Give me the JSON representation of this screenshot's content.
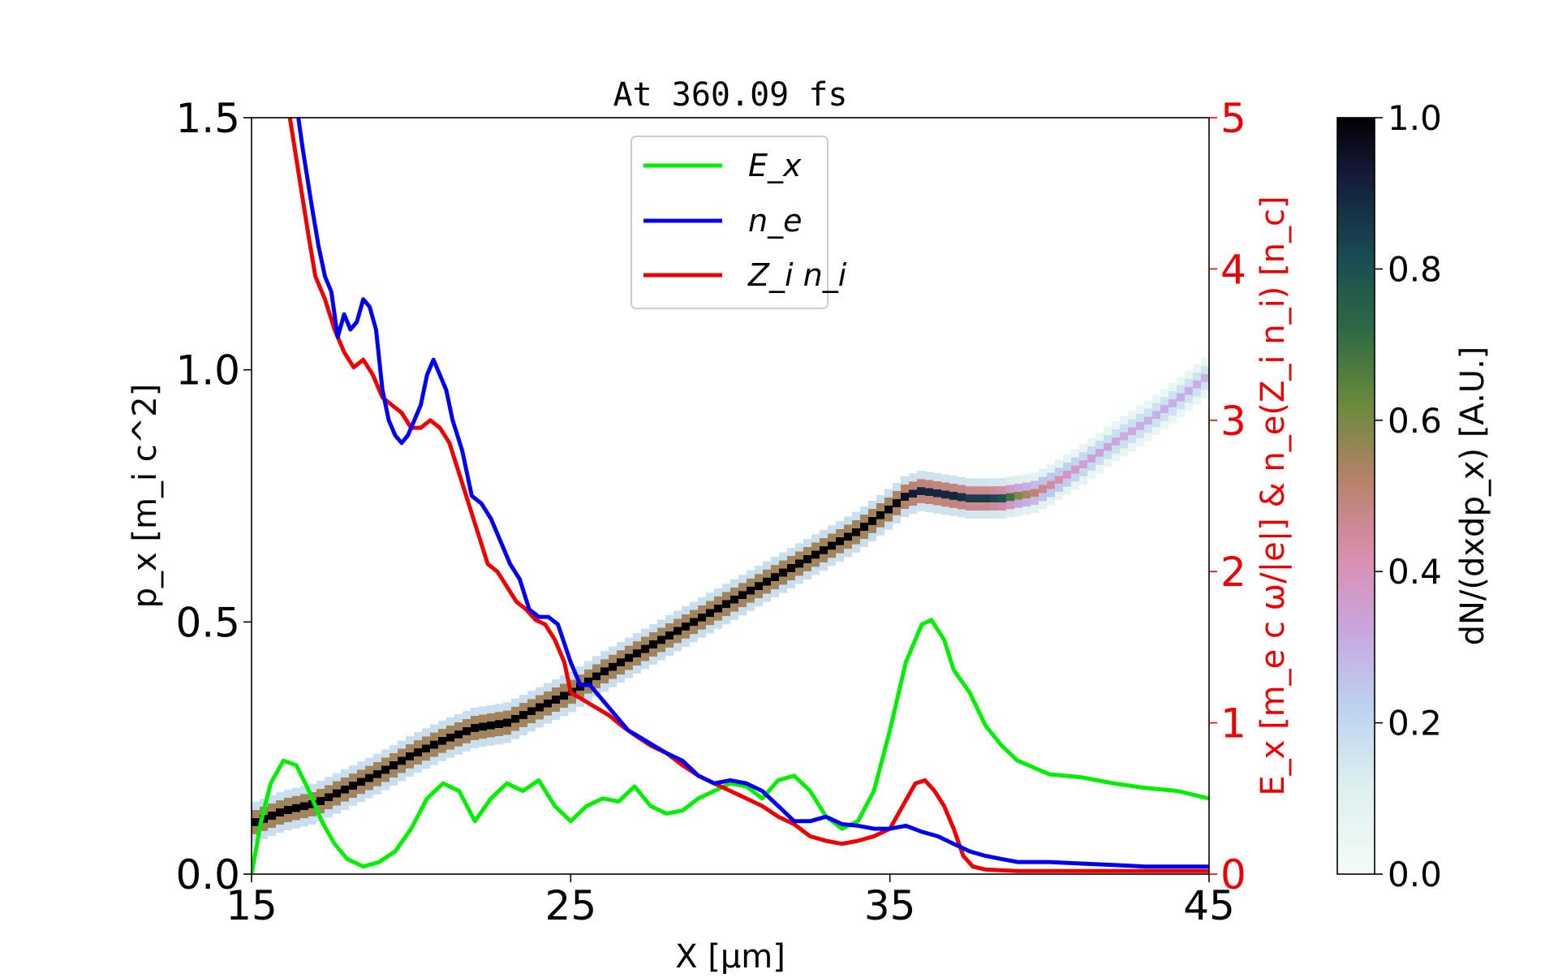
{
  "chart_data": {
    "type": "line",
    "title": "At 360.09 fs",
    "xlabel": "X [μm]",
    "ylabel_left": "p_x [m_i c^2]",
    "ylabel_right": "E_x [m_e c ω/|e|] & n_e(Z_i n_i) [n_c]",
    "xlim": [
      15,
      45
    ],
    "ylim_left": [
      0,
      1.5
    ],
    "ylim_right": [
      0,
      5
    ],
    "x_ticks": [
      "15",
      "25",
      "35",
      "45"
    ],
    "y_ticks_left": [
      "0.0",
      "0.5",
      "1.0",
      "1.5"
    ],
    "y_ticks_right": [
      "0",
      "1",
      "2",
      "3",
      "4",
      "5"
    ],
    "colorbar": {
      "label": "dN/(dxdp_x) [A.U.]",
      "ticks": [
        "0.0",
        "0.2",
        "0.4",
        "0.6",
        "0.8",
        "1.0"
      ],
      "range": [
        0,
        1
      ]
    },
    "legend": {
      "placement": "upper-center",
      "entries": [
        "E_x",
        "n_e",
        "Z_i n_i"
      ]
    },
    "colors": {
      "Ex": "#00ee00",
      "ne": "#0000ee",
      "Zini": "#ee0000",
      "right_axis": "#ee0000"
    },
    "series": [
      {
        "name": "E_x",
        "axis": "right",
        "x": [
          15.0,
          15.3,
          15.6,
          16.0,
          16.4,
          16.8,
          17.2,
          17.6,
          18.0,
          18.5,
          19.0,
          19.5,
          20.0,
          20.5,
          21.0,
          21.5,
          22.0,
          22.5,
          23.0,
          23.5,
          24.0,
          24.5,
          25.0,
          25.5,
          26.0,
          26.5,
          27.0,
          27.5,
          28.0,
          28.5,
          29.0,
          29.5,
          30.0,
          30.5,
          31.0,
          31.5,
          32.0,
          32.5,
          33.0,
          33.5,
          34.0,
          34.5,
          35.0,
          35.5,
          36.0,
          36.3,
          36.7,
          37.0,
          37.5,
          38.0,
          38.5,
          39.0,
          40.0,
          41.0,
          42.0,
          43.0,
          44.0,
          45.0
        ],
        "y": [
          0.0,
          0.35,
          0.6,
          0.75,
          0.72,
          0.55,
          0.35,
          0.2,
          0.1,
          0.05,
          0.08,
          0.15,
          0.3,
          0.5,
          0.6,
          0.55,
          0.35,
          0.5,
          0.6,
          0.55,
          0.62,
          0.45,
          0.35,
          0.45,
          0.5,
          0.48,
          0.58,
          0.45,
          0.4,
          0.42,
          0.5,
          0.55,
          0.6,
          0.58,
          0.5,
          0.62,
          0.65,
          0.55,
          0.38,
          0.3,
          0.35,
          0.55,
          0.95,
          1.4,
          1.65,
          1.68,
          1.55,
          1.35,
          1.2,
          0.98,
          0.85,
          0.75,
          0.66,
          0.64,
          0.6,
          0.57,
          0.55,
          0.5
        ]
      },
      {
        "name": "n_e",
        "axis": "right",
        "x": [
          16.4,
          16.6,
          16.9,
          17.1,
          17.3,
          17.5,
          17.7,
          17.9,
          18.1,
          18.3,
          18.5,
          18.7,
          18.9,
          19.1,
          19.3,
          19.5,
          19.7,
          19.9,
          20.1,
          20.3,
          20.5,
          20.7,
          20.9,
          21.1,
          21.3,
          21.6,
          21.9,
          22.2,
          22.5,
          22.8,
          23.1,
          23.4,
          23.7,
          24.0,
          24.3,
          24.6,
          25.0,
          25.3,
          25.6,
          26.0,
          26.4,
          26.8,
          27.2,
          27.6,
          28.0,
          28.5,
          29.0,
          29.5,
          30.0,
          30.5,
          31.0,
          31.5,
          32.0,
          32.5,
          33.0,
          33.5,
          34.0,
          34.5,
          35.0,
          35.5,
          36.0,
          36.5,
          37.0,
          37.5,
          38.0,
          38.5,
          39.0,
          40.0,
          41.0,
          42.0,
          43.0,
          44.0,
          45.0
        ],
        "y": [
          5.1,
          4.8,
          4.4,
          4.15,
          3.95,
          3.85,
          3.55,
          3.7,
          3.6,
          3.65,
          3.8,
          3.75,
          3.6,
          3.2,
          3.0,
          2.9,
          2.85,
          2.9,
          3.0,
          3.1,
          3.3,
          3.4,
          3.3,
          3.2,
          3.0,
          2.8,
          2.5,
          2.45,
          2.35,
          2.2,
          2.05,
          1.95,
          1.75,
          1.7,
          1.7,
          1.65,
          1.4,
          1.25,
          1.25,
          1.15,
          1.05,
          0.95,
          0.9,
          0.85,
          0.8,
          0.75,
          0.65,
          0.6,
          0.62,
          0.6,
          0.55,
          0.45,
          0.35,
          0.35,
          0.38,
          0.33,
          0.32,
          0.3,
          0.3,
          0.32,
          0.28,
          0.25,
          0.2,
          0.15,
          0.12,
          0.1,
          0.08,
          0.08,
          0.07,
          0.06,
          0.05,
          0.05,
          0.05
        ]
      },
      {
        "name": "Z_i n_i",
        "axis": "right",
        "x": [
          16.2,
          16.5,
          16.8,
          17.0,
          17.3,
          17.6,
          17.9,
          18.2,
          18.5,
          18.8,
          19.1,
          19.4,
          19.7,
          20.0,
          20.3,
          20.6,
          20.9,
          21.2,
          21.5,
          21.8,
          22.1,
          22.4,
          22.7,
          23.0,
          23.3,
          23.6,
          23.9,
          24.2,
          24.5,
          24.8,
          25.0,
          25.4,
          25.8,
          26.2,
          26.6,
          27.0,
          27.5,
          28.0,
          28.5,
          29.0,
          29.5,
          30.0,
          30.5,
          31.0,
          31.5,
          32.0,
          32.5,
          33.0,
          33.5,
          34.0,
          34.5,
          35.0,
          35.4,
          35.8,
          36.1,
          36.4,
          36.7,
          37.0,
          37.3,
          37.6,
          38.0,
          39.0,
          40.0,
          41.0,
          42.0,
          43.0,
          44.0,
          45.0
        ],
        "y": [
          5.0,
          4.6,
          4.2,
          3.95,
          3.8,
          3.6,
          3.45,
          3.35,
          3.4,
          3.3,
          3.15,
          3.1,
          3.05,
          2.95,
          2.95,
          3.0,
          2.95,
          2.85,
          2.65,
          2.45,
          2.25,
          2.05,
          2.0,
          1.9,
          1.8,
          1.75,
          1.68,
          1.65,
          1.55,
          1.4,
          1.2,
          1.15,
          1.1,
          1.05,
          0.98,
          0.92,
          0.85,
          0.8,
          0.72,
          0.65,
          0.6,
          0.55,
          0.5,
          0.45,
          0.38,
          0.33,
          0.25,
          0.22,
          0.2,
          0.22,
          0.25,
          0.3,
          0.45,
          0.6,
          0.62,
          0.55,
          0.45,
          0.3,
          0.12,
          0.05,
          0.03,
          0.02,
          0.02,
          0.02,
          0.02,
          0.02,
          0.02,
          0.02
        ]
      },
      {
        "name": "",
        "kind": "phase-space-density",
        "axis": "left",
        "x": [
          15.0,
          16.0,
          17.0,
          18.0,
          19.0,
          20.0,
          21.0,
          22.0,
          23.0,
          24.0,
          25.0,
          26.0,
          27.0,
          28.0,
          29.0,
          30.0,
          31.0,
          32.0,
          33.0,
          34.0,
          35.0,
          35.5,
          36.0,
          36.5,
          37.0,
          37.5,
          38.0,
          38.5,
          39.0,
          39.5,
          40.0,
          41.0,
          42.0,
          43.0,
          44.0,
          45.0
        ],
        "y": [
          0.1,
          0.125,
          0.14,
          0.17,
          0.2,
          0.235,
          0.265,
          0.29,
          0.3,
          0.33,
          0.36,
          0.4,
          0.435,
          0.47,
          0.505,
          0.54,
          0.575,
          0.61,
          0.645,
          0.68,
          0.725,
          0.75,
          0.76,
          0.755,
          0.75,
          0.745,
          0.745,
          0.745,
          0.75,
          0.755,
          0.77,
          0.81,
          0.855,
          0.895,
          0.94,
          0.99
        ],
        "density": [
          1.0,
          1.0,
          1.0,
          1.0,
          1.0,
          1.0,
          1.0,
          1.0,
          1.0,
          1.0,
          1.0,
          1.0,
          1.0,
          1.0,
          1.0,
          1.0,
          1.0,
          1.0,
          1.0,
          1.0,
          1.0,
          0.95,
          0.9,
          0.9,
          0.9,
          0.85,
          0.85,
          0.8,
          0.6,
          0.5,
          0.45,
          0.35,
          0.32,
          0.3,
          0.3,
          0.3
        ]
      }
    ]
  }
}
